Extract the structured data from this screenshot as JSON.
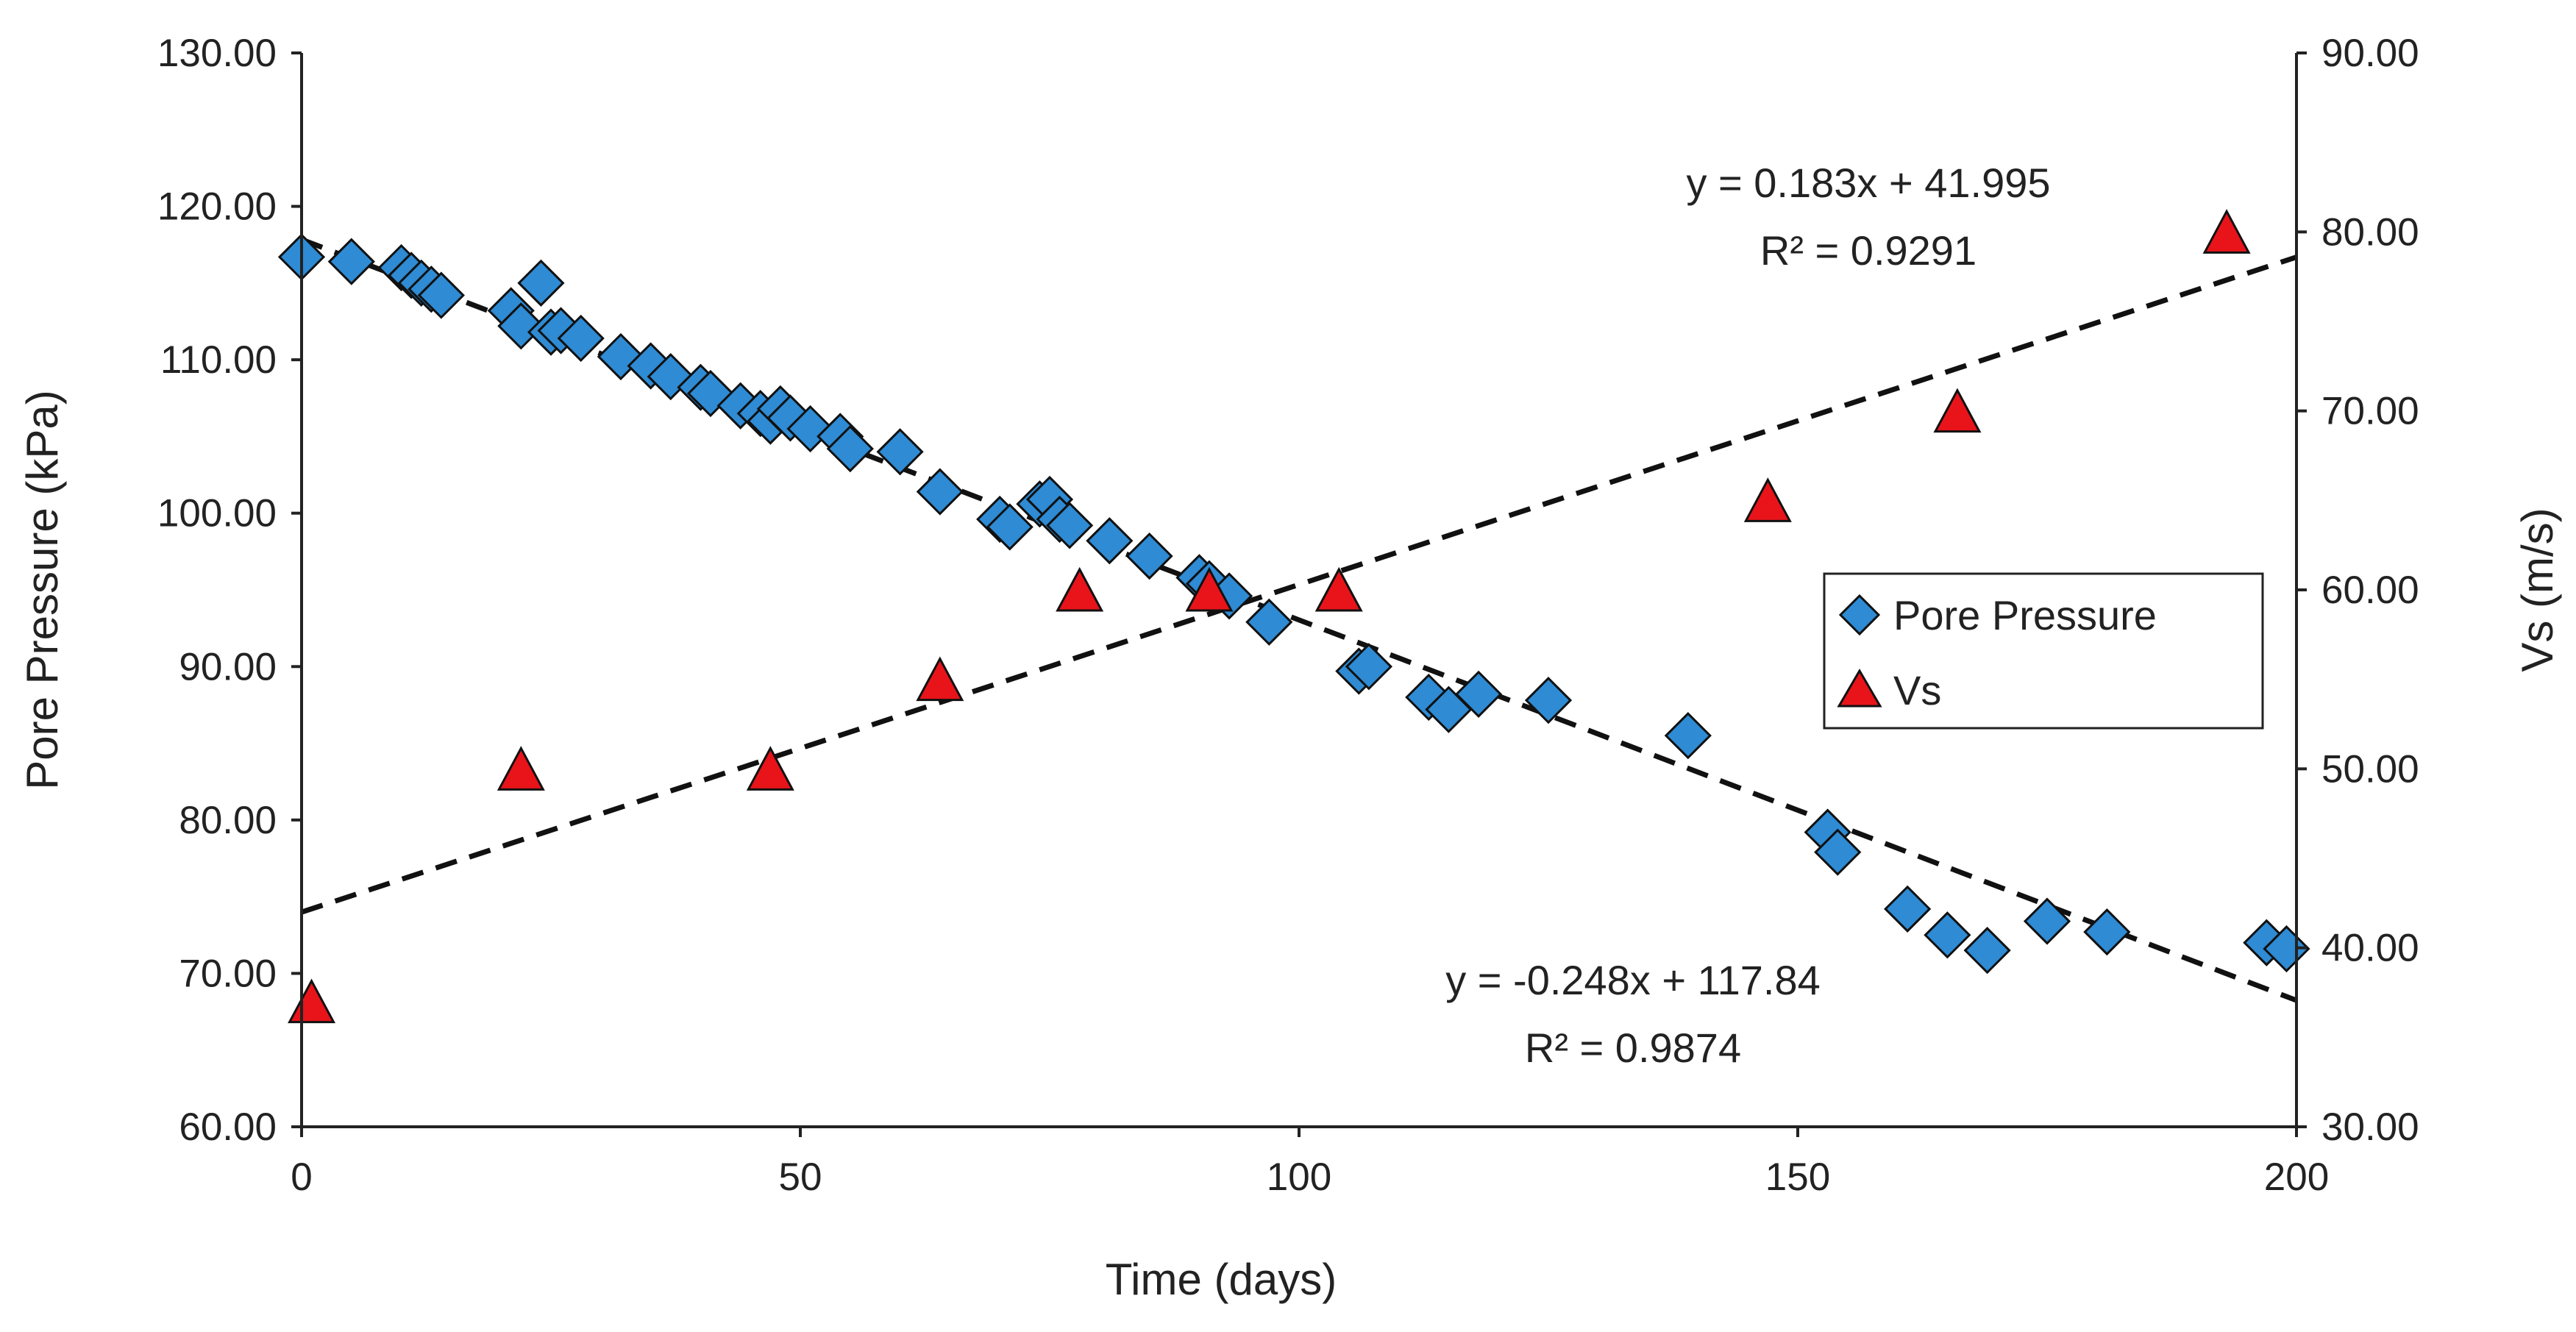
{
  "chart_data": {
    "type": "scatter",
    "title": "",
    "xlabel": "Time (days)",
    "ylabel_left": "Pore Pressure  (kPa)",
    "ylabel_right": "Vs (m/s)",
    "xlim": [
      0,
      200
    ],
    "ylim_left": [
      60,
      130
    ],
    "ylim_right": [
      30,
      90
    ],
    "x_ticks": [
      "0",
      "50",
      "100",
      "150",
      "200"
    ],
    "y_left_ticks": [
      "60.00",
      "70.00",
      "80.00",
      "90.00",
      "100.00",
      "110.00",
      "120.00",
      "130.00"
    ],
    "y_right_ticks": [
      "30.00",
      "40.00",
      "50.00",
      "60.00",
      "70.00",
      "80.00",
      "90.00"
    ],
    "grid": false,
    "legend_position": "center-right",
    "series": [
      {
        "name": "Pore Pressure",
        "axis": "left",
        "marker": "diamond",
        "color": "#2e8bd4",
        "x": [
          0,
          5,
          10,
          11,
          12,
          13,
          14,
          21,
          22,
          24,
          25,
          26,
          28,
          32,
          35,
          37,
          40,
          41,
          44,
          46,
          47,
          48,
          49,
          51,
          54,
          55,
          60,
          64,
          70,
          71,
          74,
          75,
          76,
          77,
          81,
          85,
          90,
          91,
          93,
          97,
          106,
          107,
          113,
          115,
          118,
          125,
          139,
          153,
          154,
          161,
          165,
          169,
          175,
          181,
          197,
          199
        ],
        "y": [
          116.7,
          116.4,
          116.0,
          115.5,
          115.0,
          114.6,
          114.2,
          113.2,
          112.2,
          115.0,
          111.8,
          111.9,
          111.4,
          110.2,
          109.6,
          108.9,
          108.2,
          107.8,
          107.0,
          106.5,
          106.0,
          106.8,
          106.2,
          105.5,
          105.0,
          104.2,
          104.0,
          101.4,
          99.6,
          99.1,
          100.6,
          100.9,
          99.6,
          99.2,
          98.2,
          97.2,
          95.8,
          95.4,
          94.6,
          92.9,
          89.7,
          90.0,
          88.0,
          87.2,
          88.2,
          87.8,
          85.5,
          79.2,
          77.9,
          74.2,
          72.5,
          71.5,
          73.4,
          72.7,
          72.0,
          71.6
        ]
      },
      {
        "name": "Vs",
        "axis": "right",
        "marker": "triangle",
        "color": "#e8141a",
        "x": [
          1,
          22,
          47,
          64,
          78,
          91,
          104,
          147,
          166,
          193
        ],
        "y": [
          37,
          50,
          50,
          55,
          60,
          60,
          60,
          65,
          70,
          80
        ]
      }
    ],
    "trendlines": [
      {
        "series": "Vs",
        "axis": "right",
        "slope": 0.183,
        "intercept": 41.995,
        "equation": "y = 0.183x + 41.995",
        "r2": "R² = 0.9291"
      },
      {
        "series": "Pore Pressure",
        "axis": "left",
        "slope": -0.248,
        "intercept": 117.84,
        "equation": "y = -0.248x + 117.84",
        "r2": "R² = 0.9874"
      }
    ]
  }
}
